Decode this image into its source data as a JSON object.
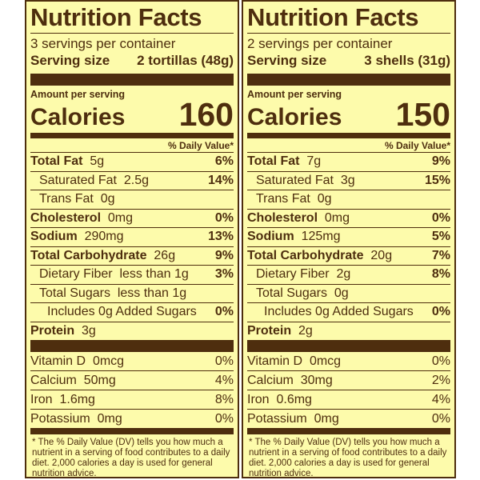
{
  "labels": [
    {
      "title": "Nutrition Facts",
      "servings": "3 servings per container",
      "serving_size_label": "Serving size",
      "serving_size_value": "2 tortillas (48g)",
      "amount_per_serving": "Amount per serving",
      "calories_label": "Calories",
      "calories_value": "160",
      "dv_header": "% Daily Value*",
      "nutrients": [
        {
          "name": "Total Fat",
          "amount": "5g",
          "dv": "6%"
        },
        {
          "name": "Saturated Fat",
          "amount": "2.5g",
          "dv": "14%"
        },
        {
          "name": "Trans Fat",
          "amount": "0g",
          "dv": ""
        },
        {
          "name": "Cholesterol",
          "amount": "0mg",
          "dv": "0%"
        },
        {
          "name": "Sodium",
          "amount": "290mg",
          "dv": "13%"
        },
        {
          "name": "Total Carbohydrate",
          "amount": "26g",
          "dv": "9%"
        },
        {
          "name": "Dietary Fiber",
          "amount": "less than 1g",
          "dv": "3%"
        },
        {
          "name": "Total Sugars",
          "amount": "less than 1g",
          "dv": ""
        },
        {
          "name": "Includes 0g Added Sugars",
          "amount": "",
          "dv": "0%"
        },
        {
          "name": "Protein",
          "amount": "3g",
          "dv": ""
        }
      ],
      "vitamins": [
        {
          "name": "Vitamin D",
          "amount": "0mcg",
          "dv": "0%"
        },
        {
          "name": "Calcium",
          "amount": "50mg",
          "dv": "4%"
        },
        {
          "name": "Iron",
          "amount": "1.6mg",
          "dv": "8%"
        },
        {
          "name": "Potassium",
          "amount": "0mg",
          "dv": "0%"
        }
      ],
      "footnote": "* The % Daily Value (DV) tells you how much a nutrient in a serving of food contributes to a daily diet. 2,000 calories a day is used for general nutrition advice."
    },
    {
      "title": "Nutrition Facts",
      "servings": "2 servings per container",
      "serving_size_label": "Serving size",
      "serving_size_value": "3 shells (31g)",
      "amount_per_serving": "Amount per serving",
      "calories_label": "Calories",
      "calories_value": "150",
      "dv_header": "% Daily Value*",
      "nutrients": [
        {
          "name": "Total Fat",
          "amount": "7g",
          "dv": "9%"
        },
        {
          "name": "Saturated Fat",
          "amount": "3g",
          "dv": "15%"
        },
        {
          "name": "Trans Fat",
          "amount": "0g",
          "dv": ""
        },
        {
          "name": "Cholesterol",
          "amount": "0mg",
          "dv": "0%"
        },
        {
          "name": "Sodium",
          "amount": "125mg",
          "dv": "5%"
        },
        {
          "name": "Total Carbohydrate",
          "amount": "20g",
          "dv": "7%"
        },
        {
          "name": "Dietary Fiber",
          "amount": "2g",
          "dv": "8%"
        },
        {
          "name": "Total Sugars",
          "amount": "0g",
          "dv": ""
        },
        {
          "name": "Includes 0g Added Sugars",
          "amount": "",
          "dv": "0%"
        },
        {
          "name": "Protein",
          "amount": "2g",
          "dv": ""
        }
      ],
      "vitamins": [
        {
          "name": "Vitamin D",
          "amount": "0mcg",
          "dv": "0%"
        },
        {
          "name": "Calcium",
          "amount": "30mg",
          "dv": "2%"
        },
        {
          "name": "Iron",
          "amount": "0.6mg",
          "dv": "4%"
        },
        {
          "name": "Potassium",
          "amount": "0mg",
          "dv": "0%"
        }
      ],
      "footnote": "* The % Daily Value (DV) tells you how much a nutrient in a serving of food contributes to a daily diet. 2,000 calories a day is used for general nutrition advice."
    }
  ],
  "colors": {
    "panel_bg": "#fdfbab",
    "ink": "#4e2e0e"
  }
}
